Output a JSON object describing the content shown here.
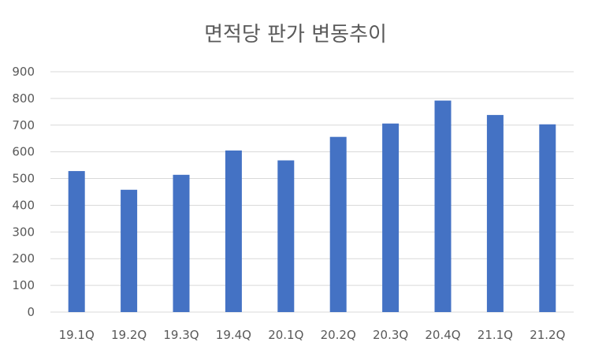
{
  "chart_data": {
    "type": "bar",
    "title": "면적당 판가 변동추이",
    "xlabel": "",
    "ylabel": "",
    "categories": [
      "19.1Q",
      "19.2Q",
      "19.3Q",
      "19.4Q",
      "20.1Q",
      "20.2Q",
      "20.3Q",
      "20.4Q",
      "21.1Q",
      "21.2Q"
    ],
    "values": [
      528,
      458,
      514,
      605,
      568,
      656,
      706,
      792,
      738,
      703
    ],
    "ylim": [
      0,
      900
    ],
    "yticks": [
      "0",
      "100",
      "200",
      "300",
      "400",
      "500",
      "600",
      "700",
      "800",
      "900"
    ],
    "grid": true,
    "legend": "none",
    "colors": {
      "bar": "#4472c4",
      "grid": "#d9d9d9",
      "text": "#595959"
    }
  }
}
